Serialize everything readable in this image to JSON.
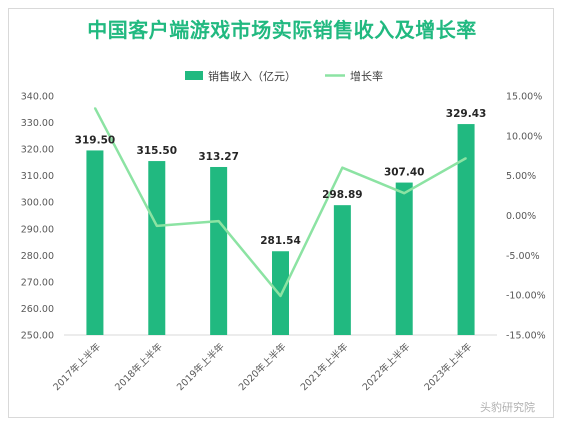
{
  "chart_data": {
    "type": "bar",
    "title": "中国客户端游戏市场实际销售收入及增长率",
    "categories": [
      "2017年上半年",
      "2018年上半年",
      "2019年上半年",
      "2020年上半年",
      "2021年上半年",
      "2022年上半年",
      "2023年上半年"
    ],
    "series": [
      {
        "name": "销售收入（亿元）",
        "type": "bar",
        "axis": "left",
        "values": [
          319.5,
          315.5,
          313.27,
          281.54,
          298.89,
          307.4,
          329.43
        ],
        "labels": [
          "319.50",
          "315.50",
          "313.27",
          "281.54",
          "298.89",
          "307.40",
          "329.43"
        ],
        "color": "#21b980"
      },
      {
        "name": "增长率",
        "type": "line",
        "axis": "right",
        "values": [
          13.5,
          -1.3,
          -0.7,
          -10.1,
          6.0,
          2.8,
          7.2
        ],
        "color": "#8ce3a3"
      }
    ],
    "y_left": {
      "min": 250,
      "max": 340,
      "step": 10,
      "ticks": [
        "250.00",
        "260.00",
        "270.00",
        "280.00",
        "290.00",
        "300.00",
        "310.00",
        "320.00",
        "330.00",
        "340.00"
      ]
    },
    "y_right": {
      "min": -15,
      "max": 15,
      "step": 5,
      "ticks": [
        "-15.00%",
        "-10.00%",
        "-5.00%",
        "0.00%",
        "5.00%",
        "10.00%",
        "15.00%"
      ]
    },
    "legend_position": "top",
    "grid": false
  },
  "watermark": "头豹研究院"
}
